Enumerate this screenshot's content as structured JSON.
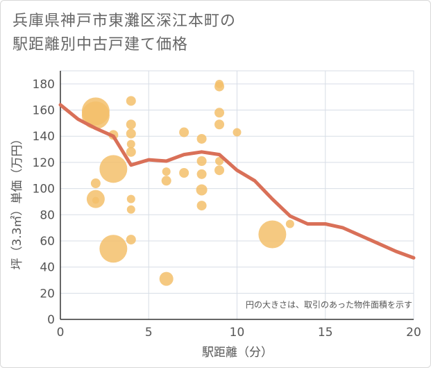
{
  "title": {
    "line1": "兵庫県神戸市東灘区深江本町の",
    "line2": "駅距離別中古戸建て価格"
  },
  "colors": {
    "bubble": "#f3bf6b",
    "line": "#d97058",
    "grid": "#d7dde6",
    "text": "#555555"
  },
  "chart_data": {
    "type": "scatter",
    "xlabel": "駅距離（分）",
    "ylabel": "坪（3.3㎡）単価（万円）",
    "xlim": [
      0,
      20
    ],
    "ylim": [
      0,
      190
    ],
    "x_ticks": [
      0,
      5,
      10,
      15,
      20
    ],
    "y_ticks": [
      0,
      20,
      40,
      60,
      80,
      100,
      120,
      140,
      160,
      180
    ],
    "grid": true,
    "note": "円の大きさは、取引のあった物件面積を示す",
    "bubbles": [
      {
        "x": 2,
        "y": 159,
        "r": 20
      },
      {
        "x": 2,
        "y": 156,
        "r": 20
      },
      {
        "x": 2,
        "y": 104,
        "r": 7
      },
      {
        "x": 2,
        "y": 92,
        "r": 13
      },
      {
        "x": 2,
        "y": 91,
        "r": 5
      },
      {
        "x": 3,
        "y": 141,
        "r": 7
      },
      {
        "x": 3,
        "y": 115,
        "r": 20
      },
      {
        "x": 3,
        "y": 54,
        "r": 20
      },
      {
        "x": 4,
        "y": 167,
        "r": 7
      },
      {
        "x": 4,
        "y": 149,
        "r": 7
      },
      {
        "x": 4,
        "y": 142,
        "r": 7
      },
      {
        "x": 4,
        "y": 134,
        "r": 6
      },
      {
        "x": 4,
        "y": 128,
        "r": 7
      },
      {
        "x": 4,
        "y": 92,
        "r": 6
      },
      {
        "x": 4,
        "y": 84,
        "r": 6
      },
      {
        "x": 4,
        "y": 61,
        "r": 7
      },
      {
        "x": 6,
        "y": 113,
        "r": 6
      },
      {
        "x": 6,
        "y": 106,
        "r": 7
      },
      {
        "x": 6,
        "y": 31,
        "r": 10
      },
      {
        "x": 7,
        "y": 143,
        "r": 7
      },
      {
        "x": 7,
        "y": 112,
        "r": 7
      },
      {
        "x": 8,
        "y": 138,
        "r": 7
      },
      {
        "x": 8,
        "y": 121,
        "r": 7
      },
      {
        "x": 8,
        "y": 111,
        "r": 7
      },
      {
        "x": 8,
        "y": 99,
        "r": 8
      },
      {
        "x": 8,
        "y": 87,
        "r": 7
      },
      {
        "x": 9,
        "y": 180,
        "r": 6
      },
      {
        "x": 9,
        "y": 178,
        "r": 7
      },
      {
        "x": 9,
        "y": 158,
        "r": 7
      },
      {
        "x": 9,
        "y": 149,
        "r": 7
      },
      {
        "x": 9,
        "y": 121,
        "r": 6
      },
      {
        "x": 9,
        "y": 114,
        "r": 7
      },
      {
        "x": 10,
        "y": 143,
        "r": 6
      },
      {
        "x": 12,
        "y": 65,
        "r": 20
      },
      {
        "x": 13,
        "y": 73,
        "r": 6
      }
    ],
    "trend": {
      "x": [
        0,
        1,
        2,
        3,
        4,
        5,
        6,
        7,
        8,
        9,
        10,
        11,
        12,
        13,
        14,
        15,
        16,
        17,
        18,
        19,
        20
      ],
      "y": [
        164,
        153,
        146,
        140,
        118,
        122,
        121,
        126,
        128,
        126,
        114,
        106,
        92,
        79,
        73,
        73,
        70,
        64,
        58,
        52,
        47
      ]
    }
  }
}
